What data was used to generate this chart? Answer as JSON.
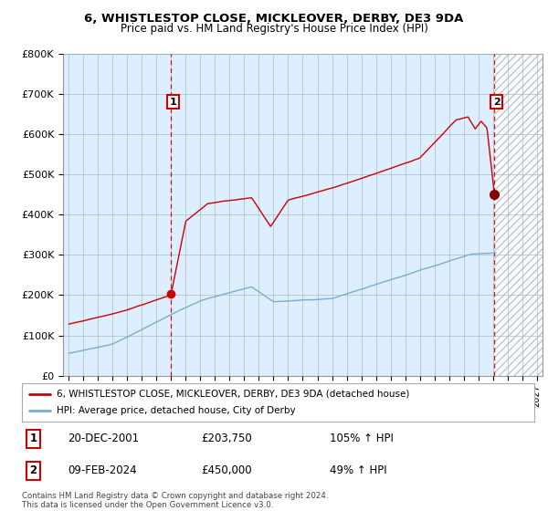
{
  "title": "6, WHISTLESTOP CLOSE, MICKLEOVER, DERBY, DE3 9DA",
  "subtitle": "Price paid vs. HM Land Registry's House Price Index (HPI)",
  "ylim": [
    0,
    800000
  ],
  "yticks": [
    0,
    100000,
    200000,
    300000,
    400000,
    500000,
    600000,
    700000,
    800000
  ],
  "ytick_labels": [
    "£0",
    "£100K",
    "£200K",
    "£300K",
    "£400K",
    "£500K",
    "£600K",
    "£700K",
    "£800K"
  ],
  "legend_line1": "6, WHISTLESTOP CLOSE, MICKLEOVER, DERBY, DE3 9DA (detached house)",
  "legend_line2": "HPI: Average price, detached house, City of Derby",
  "annotation1_date": "20-DEC-2001",
  "annotation1_price": "£203,750",
  "annotation1_hpi": "105% ↑ HPI",
  "annotation2_date": "09-FEB-2024",
  "annotation2_price": "£450,000",
  "annotation2_hpi": "49% ↑ HPI",
  "footer": "Contains HM Land Registry data © Crown copyright and database right 2024.\nThis data is licensed under the Open Government Licence v3.0.",
  "red_color": "#cc0000",
  "blue_color": "#7aadd4",
  "chart_bg": "#ddeeff",
  "hatch_bg": "#e8e8e8",
  "grid_color": "#aabbcc",
  "sale1_x": 2001.97,
  "sale1_y": 203750,
  "sale2_x": 2024.11,
  "sale2_y": 450000,
  "xlim_left": 1994.6,
  "xlim_right": 2027.4,
  "hatch_start": 2024.11
}
